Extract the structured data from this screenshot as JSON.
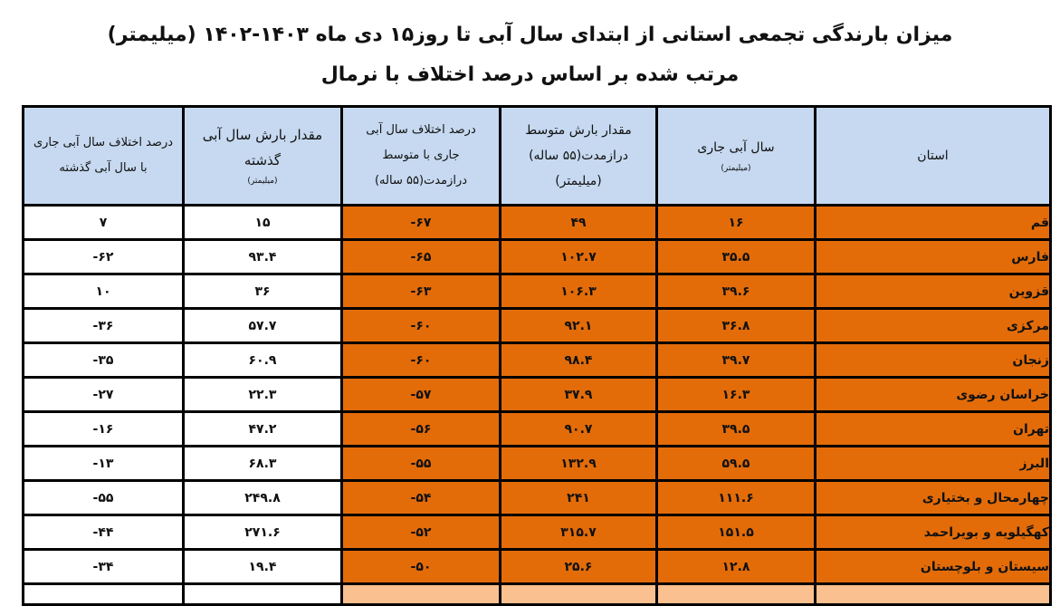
{
  "title": "میزان بارندگی تجمعی استانی از ابتدای سال آبی تا روز۱۵ دی ماه ۱۴۰۳-۱۴۰۲ (میلیمتر)",
  "subtitle": "مرتب شده بر اساس درصد اختلاف با نرمال",
  "colors": {
    "highlight": "#e36c09",
    "header": "#c6d9f0",
    "next_row": "#fbc08f"
  },
  "columns": [
    {
      "label": "استان",
      "unit": ""
    },
    {
      "label": "سال آبی جاری",
      "unit": "(میلیمتر)"
    },
    {
      "label": "مقدار بارش متوسط درازمدت(۵۵ ساله) (میلیمتر)",
      "unit": ""
    },
    {
      "label": "درصد اختلاف سال آبی جاری با متوسط درازمدت(۵۵ ساله)",
      "unit": ""
    },
    {
      "label": "مقدار بارش سال آبی گذشته",
      "unit": "(میلیمتر)"
    },
    {
      "label": "درصد اختلاف سال آبی جاری با سال آبی گذشته",
      "unit": ""
    }
  ],
  "rows": [
    {
      "province": "قم",
      "current": "۱۶",
      "longterm": "۴۹",
      "diff_longterm": "-۶۷",
      "previous": "۱۵",
      "diff_previous": "۷"
    },
    {
      "province": "فارس",
      "current": "۳۵.۵",
      "longterm": "۱۰۲.۷",
      "diff_longterm": "-۶۵",
      "previous": "۹۳.۴",
      "diff_previous": "-۶۲"
    },
    {
      "province": "قزوین",
      "current": "۳۹.۶",
      "longterm": "۱۰۶.۳",
      "diff_longterm": "-۶۳",
      "previous": "۳۶",
      "diff_previous": "۱۰"
    },
    {
      "province": "مرکزی",
      "current": "۳۶.۸",
      "longterm": "۹۲.۱",
      "diff_longterm": "-۶۰",
      "previous": "۵۷.۷",
      "diff_previous": "-۳۶"
    },
    {
      "province": "زنجان",
      "current": "۳۹.۷",
      "longterm": "۹۸.۴",
      "diff_longterm": "-۶۰",
      "previous": "۶۰.۹",
      "diff_previous": "-۳۵"
    },
    {
      "province": "خراسان رضوی",
      "current": "۱۶.۳",
      "longterm": "۳۷.۹",
      "diff_longterm": "-۵۷",
      "previous": "۲۲.۳",
      "diff_previous": "-۲۷"
    },
    {
      "province": "تهران",
      "current": "۳۹.۵",
      "longterm": "۹۰.۷",
      "diff_longterm": "-۵۶",
      "previous": "۴۷.۲",
      "diff_previous": "-۱۶"
    },
    {
      "province": "البرز",
      "current": "۵۹.۵",
      "longterm": "۱۳۲.۹",
      "diff_longterm": "-۵۵",
      "previous": "۶۸.۳",
      "diff_previous": "-۱۳"
    },
    {
      "province": "چهارمحال و بختیاری",
      "current": "۱۱۱.۶",
      "longterm": "۲۴۱",
      "diff_longterm": "-۵۴",
      "previous": "۲۴۹.۸",
      "diff_previous": "-۵۵"
    },
    {
      "province": "کهگیلویه و بویراحمد",
      "current": "۱۵۱.۵",
      "longterm": "۳۱۵.۷",
      "diff_longterm": "-۵۲",
      "previous": "۲۷۱.۶",
      "diff_previous": "-۴۴"
    },
    {
      "province": "سیستان و بلوچستان",
      "current": "۱۲.۸",
      "longterm": "۲۵.۶",
      "diff_longterm": "-۵۰",
      "previous": "۱۹.۴",
      "diff_previous": "-۳۴"
    }
  ]
}
